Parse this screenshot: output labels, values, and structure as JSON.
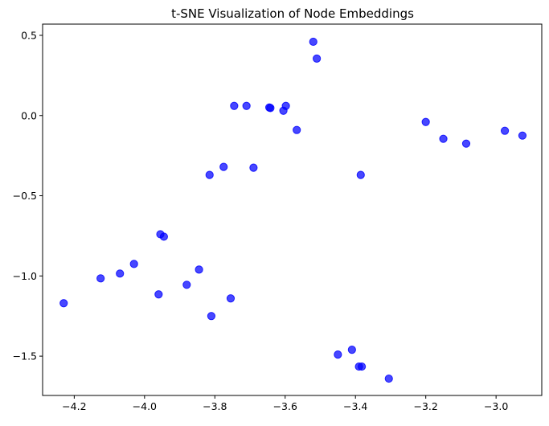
{
  "chart_data": {
    "type": "scatter",
    "title": "t-SNE Visualization of Node Embeddings",
    "xlabel": "",
    "ylabel": "",
    "xlim": [
      -4.29,
      -2.87
    ],
    "ylim": [
      -1.745,
      0.57
    ],
    "x_ticks": [
      -4.2,
      -4.0,
      -3.8,
      -3.6,
      -3.4,
      -3.2,
      -3.0
    ],
    "x_tick_labels": [
      "−4.2",
      "−4.0",
      "−3.8",
      "−3.6",
      "−3.4",
      "−3.2",
      "−3.0"
    ],
    "y_ticks": [
      0.5,
      0.0,
      -0.5,
      -1.0,
      -1.5
    ],
    "y_tick_labels": [
      "0.5",
      "0.0",
      "−0.5",
      "−1.0",
      "−1.5"
    ],
    "grid": false,
    "series": [
      {
        "color": "#0000ff",
        "opacity": 0.72,
        "points": [
          {
            "x": -3.52,
            "y": 0.46
          },
          {
            "x": -3.51,
            "y": 0.355
          },
          {
            "x": -3.745,
            "y": 0.06
          },
          {
            "x": -3.71,
            "y": 0.06
          },
          {
            "x": -3.645,
            "y": 0.05
          },
          {
            "x": -3.642,
            "y": 0.047
          },
          {
            "x": -3.605,
            "y": 0.03
          },
          {
            "x": -3.598,
            "y": 0.06
          },
          {
            "x": -3.567,
            "y": -0.09
          },
          {
            "x": -3.2,
            "y": -0.04
          },
          {
            "x": -3.15,
            "y": -0.145
          },
          {
            "x": -3.085,
            "y": -0.175
          },
          {
            "x": -2.975,
            "y": -0.095
          },
          {
            "x": -2.925,
            "y": -0.125
          },
          {
            "x": -3.815,
            "y": -0.37
          },
          {
            "x": -3.775,
            "y": -0.32
          },
          {
            "x": -3.69,
            "y": -0.325
          },
          {
            "x": -3.385,
            "y": -0.37
          },
          {
            "x": -3.955,
            "y": -0.74
          },
          {
            "x": -3.945,
            "y": -0.755
          },
          {
            "x": -4.23,
            "y": -1.17
          },
          {
            "x": -4.125,
            "y": -1.015
          },
          {
            "x": -4.07,
            "y": -0.985
          },
          {
            "x": -4.03,
            "y": -0.925
          },
          {
            "x": -3.96,
            "y": -1.115
          },
          {
            "x": -3.88,
            "y": -1.055
          },
          {
            "x": -3.845,
            "y": -0.96
          },
          {
            "x": -3.81,
            "y": -1.25
          },
          {
            "x": -3.755,
            "y": -1.14
          },
          {
            "x": -3.45,
            "y": -1.49
          },
          {
            "x": -3.41,
            "y": -1.46
          },
          {
            "x": -3.39,
            "y": -1.565
          },
          {
            "x": -3.382,
            "y": -1.565
          },
          {
            "x": -3.305,
            "y": -1.64
          }
        ]
      }
    ]
  }
}
